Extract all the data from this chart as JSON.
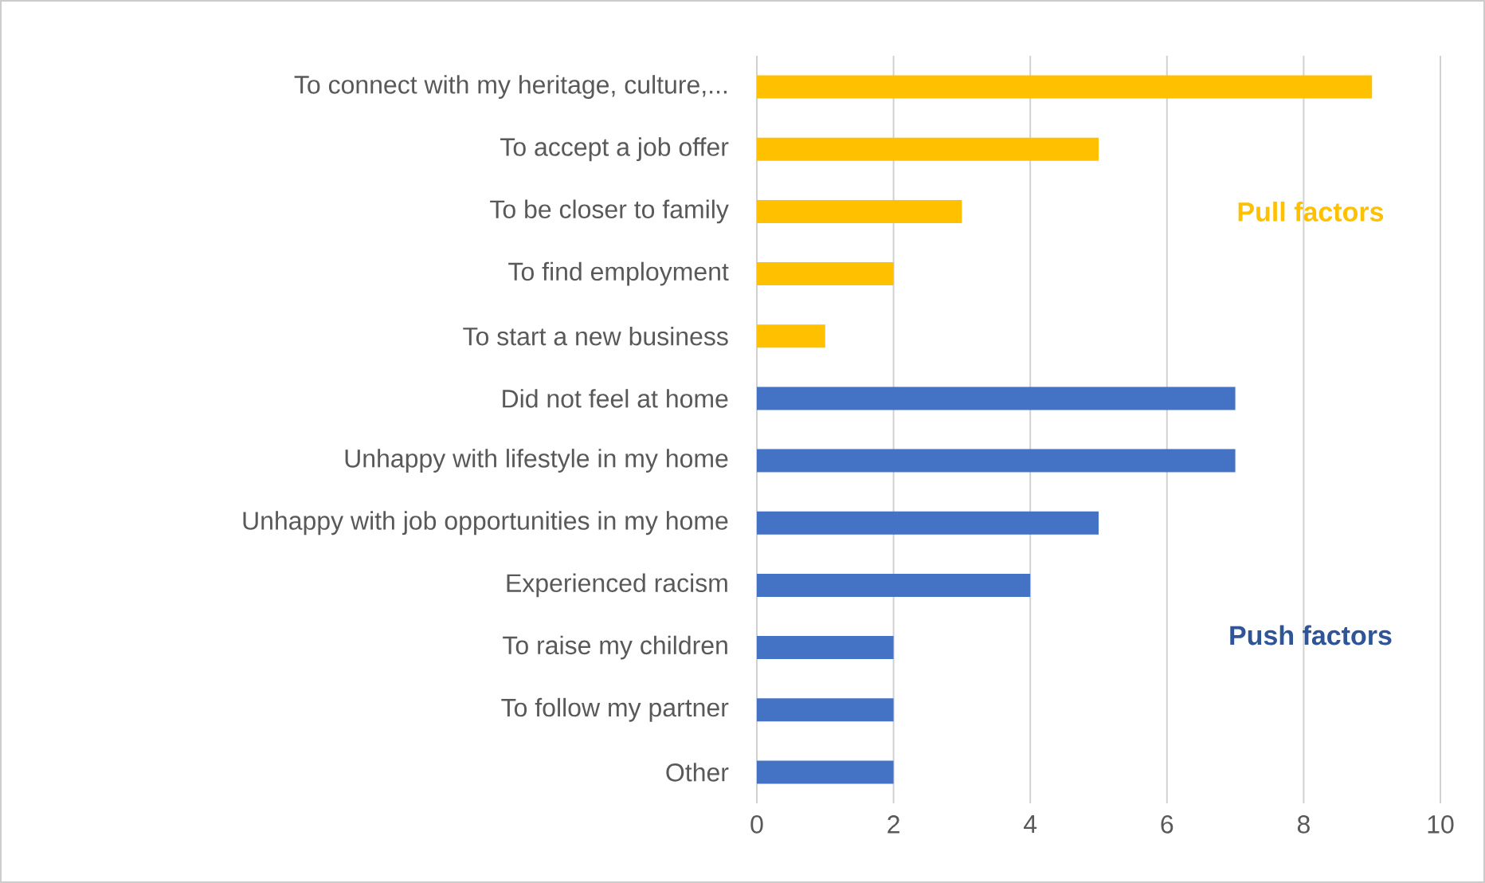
{
  "chart_data": {
    "type": "bar",
    "orientation": "horizontal",
    "categories": [
      "To connect with my heritage, culture,...",
      "To accept a job offer",
      "To be closer to family",
      "To find employment",
      "To start a new business",
      "Did not feel at home",
      "Unhappy with lifestyle in my home",
      "Unhappy with job opportunities in my home",
      "Experienced racism",
      "To raise my children",
      "To follow my partner",
      "Other"
    ],
    "values": [
      9,
      5,
      3,
      2,
      1,
      7,
      7,
      5,
      4,
      2,
      2,
      2
    ],
    "colors": [
      "#ffc000",
      "#ffc000",
      "#ffc000",
      "#ffc000",
      "#ffc000",
      "#4472c4",
      "#4472c4",
      "#4472c4",
      "#4472c4",
      "#4472c4",
      "#4472c4",
      "#4472c4"
    ],
    "xlim": [
      0,
      10
    ],
    "xticks": [
      0,
      2,
      4,
      6,
      8,
      10
    ],
    "grid": "x",
    "annotations": [
      "Pull factors",
      "Push factors"
    ]
  }
}
